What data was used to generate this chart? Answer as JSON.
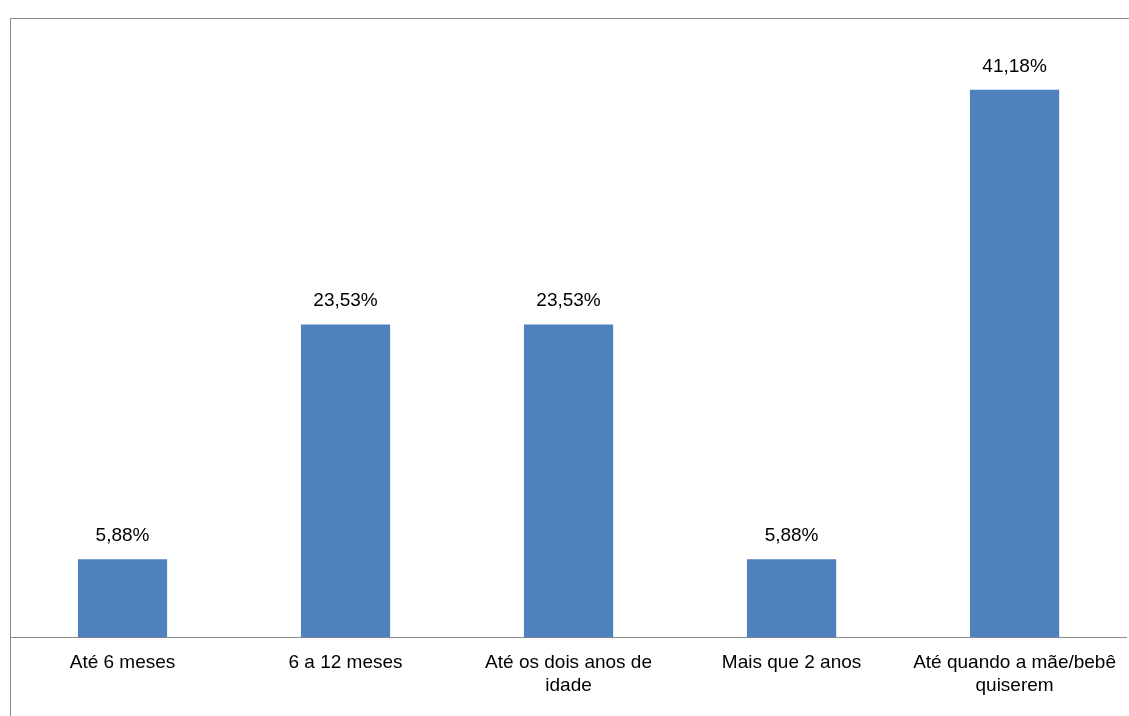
{
  "chart_data": {
    "type": "bar",
    "categories": [
      "Até 6 meses",
      "6 a 12 meses",
      "Até os dois anos de idade",
      "Mais que 2 anos",
      "Até quando a mãe/bebê quiserem"
    ],
    "values": [
      5.88,
      23.53,
      23.53,
      5.88,
      41.18
    ],
    "value_labels": [
      "5,88%",
      "23,53%",
      "23,53%",
      "5,88%",
      "41,18%"
    ],
    "color": "#4f81bd",
    "grid": false,
    "legend": false,
    "tick_labels": "x"
  }
}
